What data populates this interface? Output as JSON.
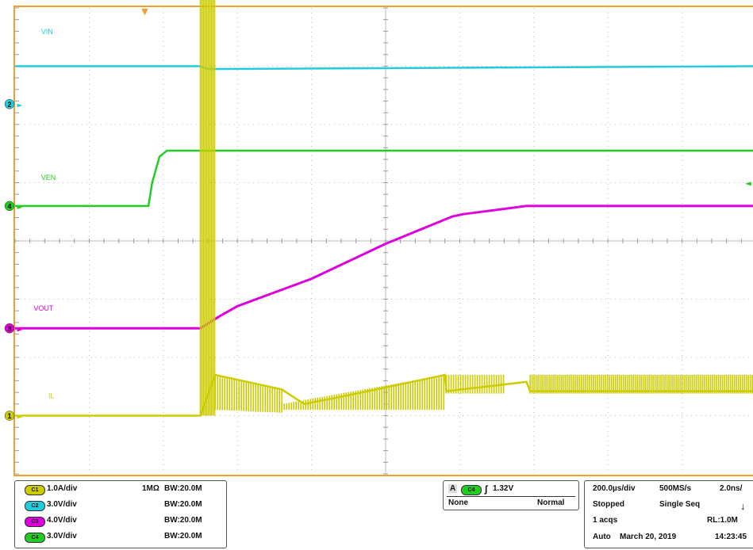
{
  "chart_data": {
    "type": "line",
    "x_range_div": [
      0,
      10
    ],
    "y_range_div": [
      -4,
      4
    ],
    "grid": true,
    "trigger_marker": "▼",
    "series": [
      {
        "name": "VIN",
        "marker": "2",
        "color": "#22ccdd",
        "x": [
          0,
          2.5,
          2.6,
          10
        ],
        "y": [
          3.0,
          3.0,
          2.95,
          3.0
        ]
      },
      {
        "name": "VEN",
        "marker": "4",
        "color": "#22cc22",
        "x": [
          0,
          1.8,
          1.85,
          1.95,
          2.05,
          10
        ],
        "y": [
          0.6,
          0.6,
          1.0,
          1.45,
          1.55,
          1.55
        ]
      },
      {
        "name": "VOUT",
        "marker": "3",
        "color": "#dd00dd",
        "x": [
          0,
          2.5,
          2.75,
          3.0,
          4.0,
          5.0,
          5.9,
          6.05,
          6.9,
          10
        ],
        "y": [
          -1.5,
          -1.5,
          -1.3,
          -1.12,
          -0.65,
          -0.05,
          0.42,
          0.46,
          0.6,
          0.6
        ]
      },
      {
        "name": "IL",
        "marker": "1",
        "color": "#cccc00",
        "x": [
          0,
          2.5,
          2.7,
          3.6,
          3.9,
          4.5,
          5.8,
          5.82,
          6.9,
          6.95,
          10
        ],
        "y": [
          -3.0,
          -3.0,
          -2.3,
          -2.55,
          -2.8,
          -2.65,
          -2.3,
          -2.58,
          -2.42,
          -2.58,
          -2.58
        ]
      }
    ],
    "ch_markers": {
      "ven_right": "◄",
      "arrow": "►"
    }
  },
  "channels": [
    {
      "chip": "C1",
      "color": "#cccc00",
      "scale": "1.0A/div",
      "coupling": "1MΩ",
      "bw": "BW:20.0M"
    },
    {
      "chip": "C2",
      "color": "#22ccdd",
      "scale": "3.0V/div",
      "coupling": "",
      "bw": "BW:20.0M"
    },
    {
      "chip": "C3",
      "color": "#dd00dd",
      "scale": "4.0V/div",
      "coupling": "",
      "bw": "BW:20.0M"
    },
    {
      "chip": "C4",
      "color": "#22cc22",
      "scale": "3.0V/div",
      "coupling": "",
      "bw": "BW:20.0M"
    }
  ],
  "trigger": {
    "mode_letter": "A",
    "source": "C4",
    "slope_glyph": "∫",
    "level": "1.32V",
    "coupling": "None",
    "mode": "Normal"
  },
  "timebase": {
    "scale": "200.0µs/div",
    "sample_rate": "500MS/s",
    "resolution": "2.0ns/",
    "state": "Stopped",
    "acq_mode": "Single Seq",
    "arrow": "↓",
    "acqs": "1 acqs",
    "record_length": "RL:1.0M",
    "run_mode": "Auto",
    "date": "March 20, 2019",
    "time": "14:23:45"
  }
}
